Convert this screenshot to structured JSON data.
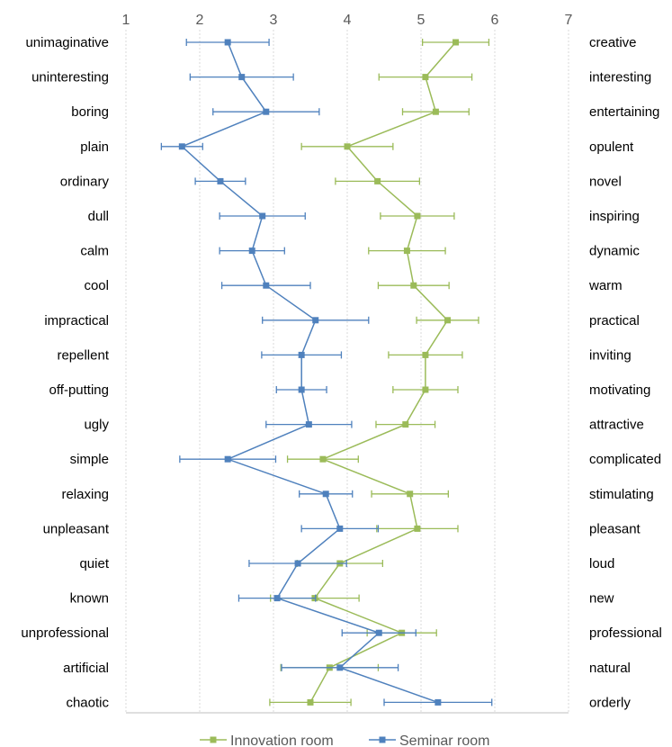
{
  "chart_data": {
    "type": "line",
    "orientation": "horizontal",
    "x_ticks": [
      "1",
      "2",
      "3",
      "4",
      "5",
      "6",
      "7"
    ],
    "xlim": [
      1,
      7
    ],
    "grid": "vertical-dotted",
    "legend_position": "bottom",
    "left_labels": [
      "unimaginative",
      "uninteresting",
      "boring",
      "plain",
      "ordinary",
      "dull",
      "calm",
      "cool",
      "impractical",
      "repellent",
      "off-putting",
      "ugly",
      "simple",
      "relaxing",
      "unpleasant",
      "quiet",
      "known",
      "unprofessional",
      "artificial",
      "chaotic"
    ],
    "right_labels": [
      "creative",
      "interesting",
      "entertaining",
      "opulent",
      "novel",
      "inspiring",
      "dynamic",
      "warm",
      "practical",
      "inviting",
      "motivating",
      "attractive",
      "complicated",
      "stimulating",
      "pleasant",
      "loud",
      "new",
      "professional",
      "natural",
      "orderly"
    ],
    "series": [
      {
        "name": "Innovation room",
        "color": "#9BBB59",
        "values": [
          5.47,
          5.06,
          5.2,
          4.0,
          4.41,
          4.95,
          4.81,
          4.9,
          5.36,
          5.06,
          5.06,
          4.79,
          3.67,
          4.85,
          4.95,
          3.9,
          3.56,
          4.74,
          3.76,
          3.5
        ],
        "errors": [
          0.45,
          0.63,
          0.45,
          0.62,
          0.57,
          0.5,
          0.52,
          0.48,
          0.42,
          0.5,
          0.44,
          0.4,
          0.48,
          0.52,
          0.55,
          0.58,
          0.6,
          0.47,
          0.66,
          0.55
        ]
      },
      {
        "name": "Seminar room",
        "color": "#4F81BD",
        "values": [
          2.38,
          2.57,
          2.9,
          1.76,
          2.28,
          2.85,
          2.71,
          2.9,
          3.57,
          3.38,
          3.38,
          3.48,
          2.38,
          3.71,
          3.9,
          3.33,
          3.05,
          4.43,
          3.9,
          5.23
        ],
        "errors": [
          0.56,
          0.7,
          0.72,
          0.28,
          0.34,
          0.58,
          0.44,
          0.6,
          0.72,
          0.54,
          0.34,
          0.58,
          0.65,
          0.36,
          0.52,
          0.66,
          0.52,
          0.5,
          0.79,
          0.73
        ]
      }
    ]
  }
}
